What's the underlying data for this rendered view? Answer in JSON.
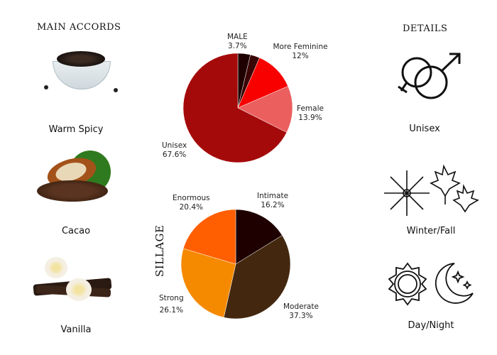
{
  "left": {
    "title": "MAIN ACCORDS",
    "accords": [
      {
        "label": "Warm Spicy",
        "icon": "peppercorn-bowl-icon"
      },
      {
        "label": "Cacao",
        "icon": "cacao-pod-icon"
      },
      {
        "label": "Vanilla",
        "icon": "vanilla-flower-icon"
      }
    ]
  },
  "right": {
    "title": "DETAILS",
    "items": [
      {
        "label": "Unisex",
        "icon": "gender-symbols-icon"
      },
      {
        "label": "Winter/Fall",
        "icon": "snowflake-maple-leaf-icon"
      },
      {
        "label": "Day/Night",
        "icon": "sun-moon-icon"
      }
    ]
  },
  "chart_data": [
    {
      "type": "pie",
      "title": "",
      "slices": [
        {
          "label": "MALE",
          "value": 3.7,
          "display": "3.7%",
          "color": "#1e0000"
        },
        {
          "label": "",
          "value": 2.8,
          "display": "",
          "color": "#3a0505"
        },
        {
          "label": "More Feminine",
          "value": 12,
          "display": "12%",
          "color": "#f80000"
        },
        {
          "label": "Female",
          "value": 13.9,
          "display": "13.9%",
          "color": "#eb5f5f"
        },
        {
          "label": "Unisex",
          "value": 67.6,
          "display": "67.6%",
          "color": "#a50a0a"
        }
      ]
    },
    {
      "type": "pie",
      "title": "SILLAGE",
      "slices": [
        {
          "label": "Intimate",
          "value": 16.2,
          "display": "16.2%",
          "color": "#1e0000"
        },
        {
          "label": "Moderate",
          "value": 37.3,
          "display": "37.3%",
          "color": "#43280f"
        },
        {
          "label": "Strong",
          "value": 26.1,
          "display": "26.1%",
          "color": "#f58a00"
        },
        {
          "label": "Enormous",
          "value": 20.4,
          "display": "20.4%",
          "color": "#ff5f00"
        }
      ]
    }
  ]
}
